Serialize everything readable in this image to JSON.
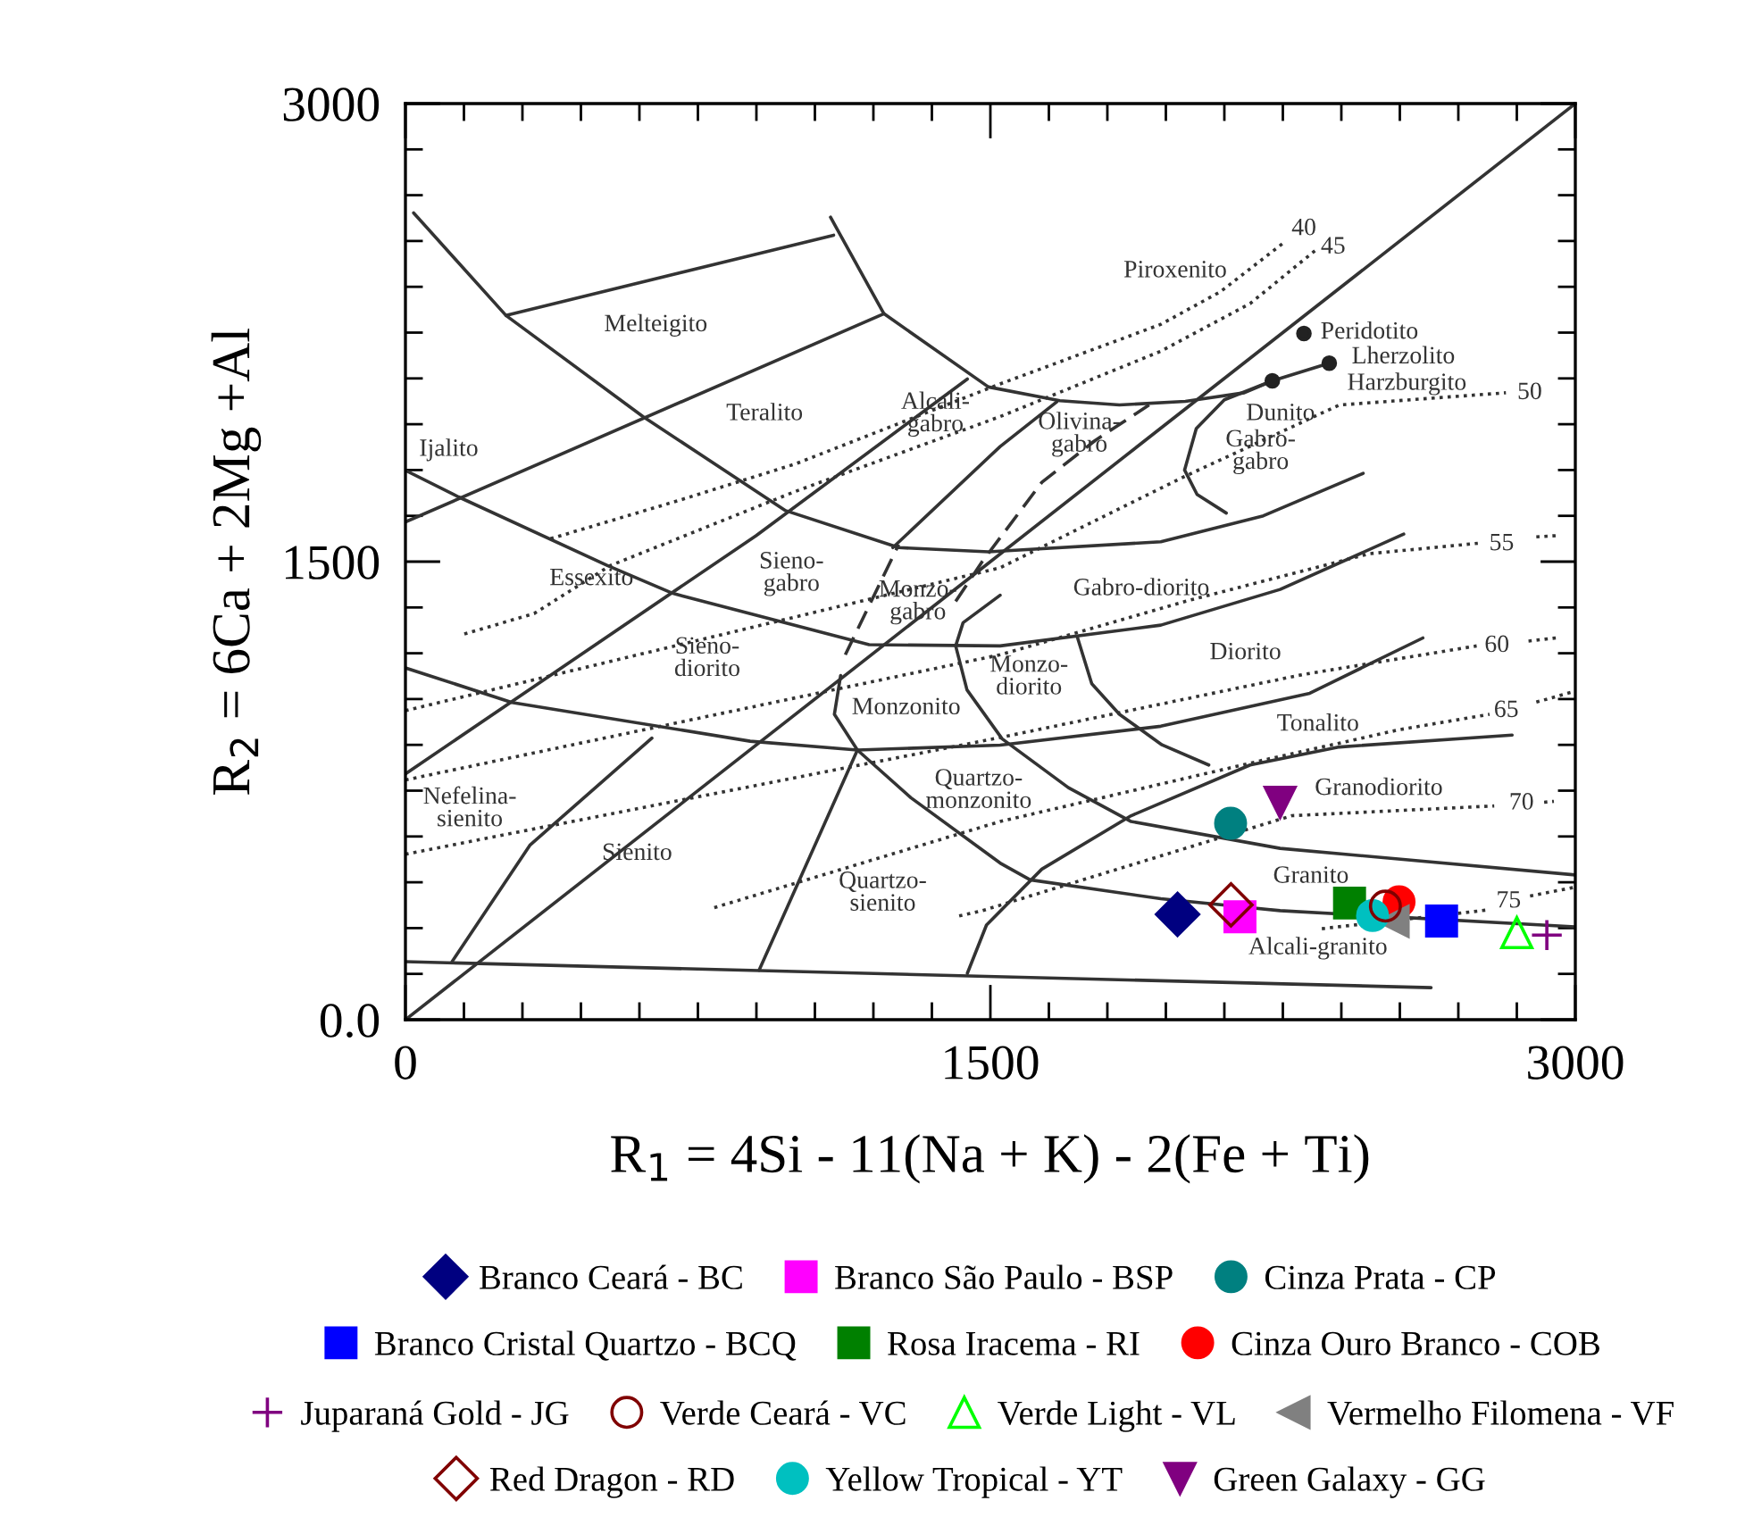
{
  "chart_data": {
    "type": "scatter",
    "xlabel": "R$_{1}$ = 4Si - 11(Na + K) - 2(Fe + Ti)",
    "ylabel": "R$_{2}$ = 6Ca + 2Mg +Al",
    "xlim": [
      0,
      3000
    ],
    "ylim": [
      0,
      3000
    ],
    "xticks": [
      0,
      {
        "value": 150,
        "label": null
      },
      {
        "value": 300,
        "label": null
      },
      {
        "value": 450,
        "label": null
      },
      {
        "value": 600,
        "label": null
      },
      {
        "value": 750,
        "label": null
      },
      {
        "value": 900,
        "label": null
      },
      {
        "value": 1050,
        "label": null
      },
      {
        "value": 1200,
        "label": null
      },
      {
        "value": 1350,
        "label": null
      },
      1500,
      {
        "value": 1650,
        "label": null
      },
      {
        "value": 1800,
        "label": null
      },
      {
        "value": 1950,
        "label": null
      },
      {
        "value": 2100,
        "label": null
      },
      {
        "value": 2250,
        "label": null
      },
      {
        "value": 2400,
        "label": null
      },
      {
        "value": 2550,
        "label": null
      },
      {
        "value": 2700,
        "label": null
      },
      {
        "value": 2850,
        "label": null
      },
      3000
    ],
    "yticks": [
      {
        "value": 0,
        "label": "0.0"
      },
      {
        "value": 150,
        "label": null
      },
      {
        "value": 300,
        "label": null
      },
      {
        "value": 450,
        "label": null
      },
      {
        "value": 600,
        "label": null
      },
      {
        "value": 750,
        "label": null
      },
      {
        "value": 900,
        "label": null
      },
      {
        "value": 1050,
        "label": null
      },
      {
        "value": 1200,
        "label": null
      },
      {
        "value": 1350,
        "label": null
      },
      1500,
      {
        "value": 1650,
        "label": null
      },
      {
        "value": 1800,
        "label": null
      },
      {
        "value": 1950,
        "label": null
      },
      {
        "value": 2100,
        "label": null
      },
      {
        "value": 2250,
        "label": null
      },
      {
        "value": 2400,
        "label": null
      },
      {
        "value": 2550,
        "label": null
      },
      {
        "value": 2700,
        "label": null
      },
      {
        "value": 2850,
        "label": null
      },
      3000
    ],
    "legend": "bottom",
    "series": [
      {
        "type": "line",
        "color": "#333333",
        "line_style": "solid",
        "x": [
          0,
          2630
        ],
        "values": [
          190,
          105
        ]
      },
      {
        "type": "line",
        "color": "#333333",
        "line_style": "solid",
        "x": [
          0,
          3000
        ],
        "values": [
          0,
          3000
        ]
      },
      {
        "type": "line",
        "color": "#333333",
        "line_style": "solid",
        "x": [
          0,
          899,
          1441
        ],
        "values": [
          805,
          1585,
          2098
        ]
      },
      {
        "type": "line",
        "color": "#333333",
        "line_style": "solid",
        "x": [
          0,
          1227
        ],
        "values": [
          1630,
          2312
        ]
      },
      {
        "type": "line",
        "color": "#333333",
        "line_style": "solid",
        "x": [
          258,
          1098
        ],
        "values": [
          2306,
          2569
        ]
      },
      {
        "type": "line",
        "color": "#333333",
        "line_style": "solid",
        "x": [
          21,
          258,
          609,
          975,
          1265,
          1495,
          1937,
          2200,
          2456
        ],
        "values": [
          2642,
          2306,
          1975,
          1667,
          1546,
          1532,
          1565,
          1650,
          1789
        ]
      },
      {
        "type": "line",
        "color": "#333333",
        "line_style": "solid",
        "x": [
          1090,
          1227,
          1495,
          1678,
          1831,
          2000,
          2151,
          2223
        ],
        "values": [
          2628,
          2312,
          2072,
          2027,
          2013,
          2025,
          2053,
          2092
        ]
      },
      {
        "type": "line",
        "color": "#333333",
        "line_style": "solid",
        "x": [
          2223,
          2369
        ],
        "values": [
          2092,
          2150
        ]
      },
      {
        "type": "line",
        "color": "#333333",
        "line_style": "solid",
        "x": [
          2223,
          2100,
          2028,
          1998,
          2030,
          2105
        ],
        "values": [
          2092,
          2030,
          1936,
          1800,
          1720,
          1659
        ]
      },
      {
        "type": "line",
        "color": "#333333",
        "line_style": "solid",
        "x": [
          0,
          136,
          518,
          686,
          1189,
          1525,
          1937,
          2243,
          2560
        ],
        "values": [
          1799,
          1712,
          1487,
          1396,
          1228,
          1224,
          1292,
          1409,
          1590
        ]
      },
      {
        "type": "line",
        "color": "#333333",
        "line_style": "solid",
        "x": [
          0,
          273,
          884,
          1159,
          1525,
          1937,
          2319,
          2609
        ],
        "values": [
          1152,
          1039,
          912,
          883,
          899,
          961,
          1069,
          1250
        ]
      },
      {
        "type": "line",
        "color": "#333333",
        "line_style": "solid",
        "x": [
          1441,
          1490,
          1632,
          1861,
          2166,
          2395,
          2838
        ],
        "values": [
          152,
          310,
          493,
          668,
          834,
          893,
          932
        ]
      },
      {
        "type": "line",
        "color": "#333333",
        "line_style": "solid",
        "x": [
          1116,
          1100,
          1159,
          1296,
          1525,
          1602,
          1937,
          2243,
          3000
        ],
        "values": [
          1127,
          1000,
          883,
          727,
          513,
          458,
          396,
          357,
          304
        ]
      },
      {
        "type": "line",
        "color": "#333333",
        "line_style": "solid",
        "x": [
          1525,
          1430,
          1411,
          1440,
          1530,
          1700,
          1861,
          2243,
          3000
        ],
        "values": [
          1390,
          1300,
          1224,
          1080,
          920,
          760,
          649,
          561,
          474
        ]
      },
      {
        "type": "line",
        "color": "#333333",
        "line_style": "solid",
        "x": [
          1723,
          1760,
          1831,
          1940,
          2060
        ],
        "values": [
          1253,
          1100,
          1000,
          900,
          834
        ]
      },
      {
        "type": "line",
        "color": "#333333",
        "line_style": "solid",
        "x": [
          1250,
          1525,
          1670
        ],
        "values": [
          1546,
          1877,
          2023
        ]
      },
      {
        "type": "line",
        "color": "#333333",
        "line_style": "solid",
        "x": [
          120,
          319,
          632
        ],
        "values": [
          191,
          571,
          922
        ]
      },
      {
        "type": "line",
        "color": "#333333",
        "line_style": "solid",
        "x": [
          907,
          1159
        ],
        "values": [
          162,
          883
        ]
      },
      {
        "type": "line",
        "color": "#333333",
        "line_style": "dashed",
        "x": [
          1128,
          1265
        ],
        "values": [
          1195,
          1556
        ]
      },
      {
        "type": "line",
        "color": "#333333",
        "line_style": "dashed",
        "x": [
          1411,
          1479,
          1632,
          1769,
          1907
        ],
        "values": [
          1370,
          1500,
          1760,
          1897,
          2013
        ]
      },
      {
        "type": "line",
        "color": "#333333",
        "line_style": "dotted",
        "x": [
          372,
          700,
          1000,
          1525,
          1937,
          2090,
          2258
        ],
        "values": [
          1575,
          1700,
          1820,
          2082,
          2277,
          2384,
          2550
        ]
      },
      {
        "type": "line",
        "color": "#333333",
        "line_style": "dotted",
        "x": [
          151,
          250,
          330,
          525,
          1000,
          1525,
          1937,
          2166,
          2334
        ],
        "values": [
          1263,
          1300,
          1330,
          1487,
          1730,
          1975,
          2189,
          2345,
          2520
        ]
      },
      {
        "type": "line",
        "color": "#333333",
        "line_style": "dotted",
        "x": [
          0,
          1525,
          1998,
          2395,
          2822
        ],
        "values": [
          1012,
          1480,
          1779,
          2013,
          2053
        ]
      },
      {
        "type": "line",
        "color": "#333333",
        "line_style": "dotted",
        "x": [
          0,
          1525,
          2000,
          2472,
          2750,
          2820,
          2900,
          2950
        ],
        "values": [
          785,
          1195,
          1370,
          1526,
          1560,
          null,
          1581,
          1585
        ]
      },
      {
        "type": "line",
        "color": "#333333",
        "line_style": "dotted",
        "x": [
          0,
          1525,
          2300,
          2747,
          2820,
          2880,
          2950
        ],
        "values": [
          542,
          924,
          1130,
          1224,
          null,
          1240,
          1250
        ]
      },
      {
        "type": "line",
        "color": "#333333",
        "line_style": "dotted",
        "x": [
          792,
          1525,
          2200,
          2550,
          2780,
          2850,
          2900,
          3000
        ],
        "values": [
          367,
          649,
          850,
          950,
          1000,
          null,
          1040,
          1076
        ]
      },
      {
        "type": "line",
        "color": "#333333",
        "line_style": "dotted",
        "x": [
          1420,
          1479,
          2273,
          2792,
          2860,
          2920,
          2945
        ],
        "values": [
          340,
          357,
          668,
          700,
          null,
          712,
          715
        ]
      },
      {
        "type": "line",
        "color": "#333333",
        "line_style": "dotted",
        "x": [
          2350,
          2780,
          2840,
          2884,
          3000
        ],
        "values": [
          298,
          360,
          null,
          405,
          434
        ]
      },
      {
        "color": "#222222",
        "marker": "circle",
        "x": [
          2304,
          2223,
          2369
        ],
        "values": [
          2247,
          2092,
          2150
        ]
      },
      {
        "name": "Branco Ceará - BC",
        "color": "#000080",
        "marker": "diamond",
        "x": [
          1980
        ],
        "values": [
          345
        ]
      },
      {
        "name": "Branco São Paulo - BSP",
        "color": "#ff00ff",
        "marker": "square",
        "x": [
          2140
        ],
        "values": [
          337
        ]
      },
      {
        "name": "Cinza Prata - CP",
        "color": "#008080",
        "marker": "circle",
        "x": [
          2116
        ],
        "values": [
          643
        ]
      },
      {
        "name": "Branco Cristal Quartzo - BCQ",
        "color": "#0000ff",
        "marker": "square",
        "x": [
          2657
        ],
        "values": [
          323
        ]
      },
      {
        "name": "Rosa Iracema - RI",
        "color": "#008000",
        "marker": "square",
        "x": [
          2421
        ],
        "values": [
          382
        ]
      },
      {
        "name": "Cinza Ouro Branco - COB",
        "color": "#ff0000",
        "marker": "circle",
        "x": [
          2548
        ],
        "values": [
          386
        ]
      },
      {
        "name": "Juparaná Gold - JG",
        "color": "#800080",
        "marker": "cross",
        "x": [
          2927
        ],
        "values": [
          277
        ]
      },
      {
        "name": "Verde Ceará - VC",
        "color": "#800000",
        "marker": "circle",
        "x": [
          2513
        ],
        "values": [
          372
        ]
      },
      {
        "name": "Verde Light - VL",
        "color": "#00ff00",
        "marker": "triangle",
        "x": [
          2850
        ],
        "values": [
          285
        ]
      },
      {
        "name": "Vermelho Filomena - VF",
        "color": "#808080",
        "marker": "triangle",
        "x": [
          2533
        ],
        "values": [
          322
        ]
      },
      {
        "name": "Red Dragon - RD",
        "color": "#800000",
        "marker": "diamond",
        "x": [
          2117
        ],
        "values": [
          376
        ]
      },
      {
        "name": "Yellow Tropical - YT",
        "color": "#00c0c0",
        "marker": "circle",
        "x": [
          2480
        ],
        "values": [
          341
        ]
      },
      {
        "name": "Green Galaxy - GG",
        "color": "#800080",
        "marker": "triangle",
        "x": [
          2243
        ],
        "values": [
          712
        ]
      }
    ],
    "annotations": [
      "Melteigito",
      "Teralito",
      "Ijalito",
      "Alcali-\ngabro",
      "Olivina-\ngabro",
      "Piroxenito",
      "Peridotito",
      "Lherzolito",
      "Harzburgito",
      "Dunito",
      "Gabro-\ngabro",
      "Essexito",
      "Sieno-\ngabro",
      "Monzo-\ngabro",
      "Sieno-\ndiorito",
      "Gabro-diorito",
      "Diorito",
      "Monzonito",
      "Monzo-\ndiorito",
      "Tonalito",
      "Nefelina-\nsienito",
      "Sienito",
      "Quartzo-\nmonzonito",
      "Granodiorito",
      "Quartzo-\nsienito",
      "Granito",
      "Alcali-granito",
      "40",
      "45",
      "50",
      "55",
      "60",
      "65",
      "70",
      "75"
    ]
  }
}
